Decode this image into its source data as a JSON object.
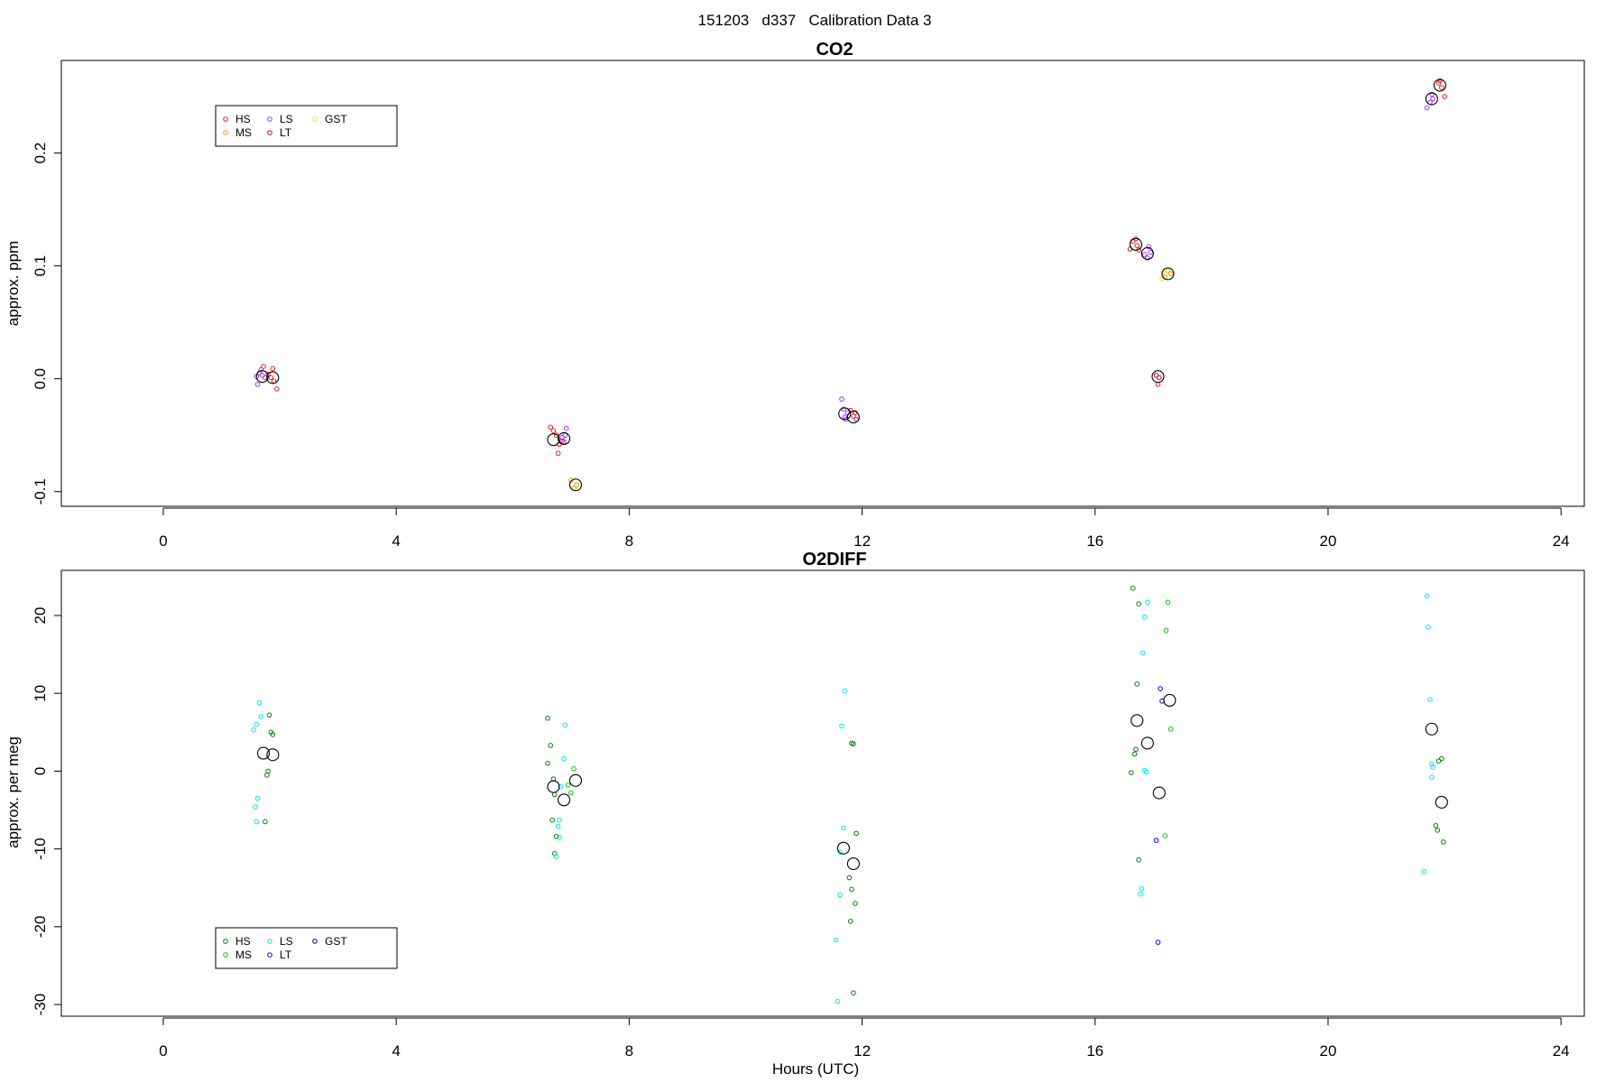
{
  "main_title": "151203   d337   Calibration Data 3",
  "chart_data": [
    {
      "type": "scatter",
      "title": "CO2",
      "xlabel": "",
      "ylabel": "approx. ppm",
      "xlim": [
        -1.75,
        24.4
      ],
      "ylim": [
        -0.113,
        0.282
      ],
      "xticks": [
        0,
        4,
        8,
        12,
        16,
        20,
        24
      ],
      "yticks": [
        -0.1,
        0.0,
        0.1,
        0.2
      ],
      "ytick_labels": [
        "-0.1",
        "0.0",
        "0.1",
        "0.2"
      ],
      "legend": {
        "placement": "top-left",
        "entries": [
          {
            "name": "HS",
            "color": "#e41a1c"
          },
          {
            "name": "MS",
            "color": "#ff9900"
          },
          {
            "name": "LS",
            "color": "#9933ff"
          },
          {
            "name": "LT",
            "color": "#cc0033"
          },
          {
            "name": "GST",
            "color": "#ffdd33"
          }
        ]
      },
      "series": [
        {
          "name": "HS",
          "color": "#e41a1c",
          "points": [
            [
              1.65,
              0.005
            ],
            [
              1.72,
              0.011
            ],
            [
              1.8,
              0.004
            ],
            [
              1.88,
              0.009
            ],
            [
              1.9,
              -0.002
            ],
            [
              1.95,
              -0.009
            ],
            [
              1.85,
              0.001
            ],
            [
              6.65,
              -0.043
            ],
            [
              6.7,
              -0.046
            ],
            [
              6.75,
              -0.05
            ],
            [
              6.8,
              -0.058
            ],
            [
              6.78,
              -0.066
            ],
            [
              6.85,
              -0.055
            ],
            [
              11.8,
              -0.028
            ],
            [
              11.85,
              -0.033
            ],
            [
              11.9,
              -0.036
            ],
            [
              11.88,
              -0.03
            ],
            [
              16.6,
              0.115
            ],
            [
              16.65,
              0.122
            ],
            [
              16.7,
              0.124
            ],
            [
              16.72,
              0.118
            ],
            [
              16.75,
              0.114
            ],
            [
              17.08,
              -0.005
            ],
            [
              21.9,
              0.262
            ],
            [
              21.95,
              0.258
            ],
            [
              22.0,
              0.25
            ],
            [
              21.92,
              0.264
            ]
          ]
        },
        {
          "name": "MS",
          "color": "#ff9900",
          "points": [
            [
              7.0,
              -0.09
            ],
            [
              7.05,
              -0.097
            ],
            [
              7.1,
              -0.094
            ],
            [
              17.2,
              0.09
            ],
            [
              17.25,
              0.096
            ],
            [
              17.3,
              0.093
            ]
          ]
        },
        {
          "name": "LS",
          "color": "#9933ff",
          "points": [
            [
              1.6,
              0.002
            ],
            [
              1.62,
              -0.005
            ],
            [
              1.68,
              0.008
            ],
            [
              1.7,
              0.003
            ],
            [
              1.75,
              0.001
            ],
            [
              6.85,
              -0.052
            ],
            [
              6.9,
              -0.05
            ],
            [
              6.92,
              -0.044
            ],
            [
              6.88,
              -0.056
            ],
            [
              11.65,
              -0.018
            ],
            [
              11.68,
              -0.027
            ],
            [
              11.7,
              -0.034
            ],
            [
              11.72,
              -0.036
            ],
            [
              11.75,
              -0.03
            ],
            [
              16.85,
              0.11
            ],
            [
              16.9,
              0.107
            ],
            [
              16.92,
              0.117
            ],
            [
              16.95,
              0.112
            ],
            [
              21.7,
              0.24
            ],
            [
              21.75,
              0.245
            ],
            [
              21.78,
              0.252
            ],
            [
              21.8,
              0.248
            ]
          ]
        },
        {
          "name": "LT",
          "color": "#cc0033",
          "points": [
            [
              17.05,
              0.003
            ],
            [
              17.1,
              0.001
            ]
          ]
        },
        {
          "name": "GST",
          "color": "#ffdd33",
          "points": [
            [
              17.15,
              0.089
            ],
            [
              17.2,
              0.094
            ]
          ]
        }
      ],
      "means": [
        [
          1.7,
          0.002
        ],
        [
          1.88,
          0.001
        ],
        [
          6.7,
          -0.054
        ],
        [
          6.88,
          -0.053
        ],
        [
          7.08,
          -0.094
        ],
        [
          11.7,
          -0.031
        ],
        [
          11.85,
          -0.034
        ],
        [
          16.7,
          0.119
        ],
        [
          16.9,
          0.111
        ],
        [
          17.08,
          0.002
        ],
        [
          17.25,
          0.093
        ],
        [
          21.78,
          0.248
        ],
        [
          21.92,
          0.26
        ]
      ]
    },
    {
      "type": "scatter",
      "title": "O2DIFF",
      "xlabel": "Hours (UTC)",
      "ylabel": "approx. per meg",
      "xlim": [
        -1.75,
        24.4
      ],
      "ylim": [
        -31.5,
        25.8
      ],
      "xticks": [
        0,
        4,
        8,
        12,
        16,
        20,
        24
      ],
      "yticks": [
        -30,
        -20,
        -10,
        0,
        10,
        20
      ],
      "ytick_labels": [
        "-30",
        "-20",
        "-10",
        "0",
        "10",
        "20"
      ],
      "legend": {
        "placement": "bottom-left",
        "entries": [
          {
            "name": "HS",
            "color": "#008000"
          },
          {
            "name": "MS",
            "color": "#00cc00"
          },
          {
            "name": "LS",
            "color": "#00e5ee"
          },
          {
            "name": "LT",
            "color": "#0000ff"
          },
          {
            "name": "GST",
            "color": "#0000aa"
          }
        ]
      },
      "series": [
        {
          "name": "HS",
          "color": "#008000",
          "points": [
            [
              1.82,
              7.2
            ],
            [
              1.85,
              5.0
            ],
            [
              1.88,
              4.7
            ],
            [
              1.8,
              0.0
            ],
            [
              1.78,
              -0.5
            ],
            [
              1.75,
              -6.5
            ],
            [
              6.6,
              6.8
            ],
            [
              6.65,
              3.3
            ],
            [
              6.6,
              1.0
            ],
            [
              6.7,
              -1.0
            ],
            [
              6.72,
              -3.0
            ],
            [
              6.68,
              -6.3
            ],
            [
              6.75,
              -8.4
            ],
            [
              6.72,
              -10.6
            ],
            [
              11.85,
              3.5
            ],
            [
              11.82,
              3.6
            ],
            [
              11.9,
              -8.0
            ],
            [
              11.78,
              -13.7
            ],
            [
              11.82,
              -15.2
            ],
            [
              11.88,
              -17.0
            ],
            [
              11.8,
              -19.3
            ],
            [
              11.85,
              -28.5
            ],
            [
              16.7,
              2.8
            ],
            [
              16.68,
              2.2
            ],
            [
              16.62,
              -0.2
            ],
            [
              16.72,
              11.2
            ],
            [
              16.75,
              21.5
            ],
            [
              16.65,
              23.5
            ],
            [
              16.75,
              -11.4
            ],
            [
              21.9,
              1.3
            ],
            [
              21.95,
              1.6
            ],
            [
              21.85,
              -7.0
            ],
            [
              21.88,
              -7.6
            ],
            [
              21.98,
              -9.1
            ]
          ]
        },
        {
          "name": "MS",
          "color": "#00cc00",
          "points": [
            [
              7.05,
              0.3
            ],
            [
              7.0,
              -2.8
            ],
            [
              6.95,
              -1.8
            ],
            [
              17.25,
              21.7
            ],
            [
              17.22,
              18.1
            ],
            [
              17.3,
              5.4
            ],
            [
              17.2,
              -8.3
            ]
          ]
        },
        {
          "name": "LS",
          "color": "#00e5ee",
          "points": [
            [
              1.65,
              8.8
            ],
            [
              1.68,
              7.0
            ],
            [
              1.6,
              6.0
            ],
            [
              1.55,
              5.3
            ],
            [
              1.62,
              -3.5
            ],
            [
              1.58,
              -4.6
            ],
            [
              1.6,
              -6.5
            ],
            [
              6.9,
              5.9
            ],
            [
              6.88,
              1.6
            ],
            [
              6.82,
              -2.0
            ],
            [
              6.8,
              -6.3
            ],
            [
              6.78,
              -7.1
            ],
            [
              6.8,
              -8.5
            ],
            [
              6.75,
              -11.0
            ],
            [
              11.7,
              10.3
            ],
            [
              11.65,
              5.8
            ],
            [
              11.68,
              -7.3
            ],
            [
              11.62,
              -10.4
            ],
            [
              11.62,
              -15.9
            ],
            [
              11.55,
              -21.7
            ],
            [
              11.58,
              -29.6
            ],
            [
              16.9,
              21.7
            ],
            [
              16.85,
              19.8
            ],
            [
              16.82,
              15.2
            ],
            [
              16.85,
              0.1
            ],
            [
              16.88,
              -0.1
            ],
            [
              16.8,
              -15.1
            ],
            [
              16.78,
              -15.8
            ],
            [
              21.7,
              22.5
            ],
            [
              21.72,
              18.5
            ],
            [
              21.75,
              9.2
            ],
            [
              21.78,
              0.9
            ],
            [
              21.8,
              0.5
            ],
            [
              21.78,
              -0.8
            ],
            [
              21.65,
              -12.9
            ]
          ]
        },
        {
          "name": "LT",
          "color": "#0000ff",
          "points": [
            [
              17.12,
              10.6
            ],
            [
              17.05,
              -8.9
            ],
            [
              17.08,
              -22.0
            ]
          ]
        },
        {
          "name": "GST",
          "color": "#0000aa",
          "points": [
            [
              17.15,
              9.0
            ]
          ]
        }
      ],
      "means": [
        [
          1.72,
          2.3
        ],
        [
          1.88,
          2.1
        ],
        [
          6.7,
          -2.0
        ],
        [
          6.88,
          -3.7
        ],
        [
          7.08,
          -1.2
        ],
        [
          11.68,
          -9.9
        ],
        [
          11.85,
          -11.9
        ],
        [
          16.72,
          6.5
        ],
        [
          16.9,
          3.6
        ],
        [
          17.1,
          -2.8
        ],
        [
          17.28,
          9.1
        ],
        [
          21.78,
          5.4
        ],
        [
          21.95,
          -4.0
        ]
      ]
    }
  ]
}
